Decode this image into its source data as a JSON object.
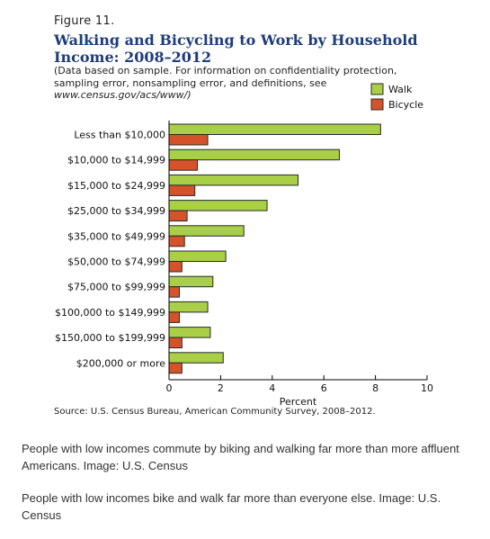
{
  "figure": {
    "label": "Figure 11.",
    "title": "Walking and Bicycling to Work by Household Income: 2008–2012",
    "note_text": "(Data based on sample. For information on confidentiality protection, sampling error, nonsampling error, and definitions, see",
    "note_url": "www.census.gov/acs/www/)",
    "source": "Source: U.S. Census Bureau, American Community Survey, 2008–2012."
  },
  "colors": {
    "walk": "#a8cf45",
    "bicycle": "#d4532b",
    "bar_stroke": "#2a2a2a"
  },
  "chart_data": {
    "type": "bar",
    "orientation": "horizontal",
    "categories": [
      "Less than $10,000",
      "$10,000 to $14,999",
      "$15,000 to $24,999",
      "$25,000 to $34,999",
      "$35,000 to $49,999",
      "$50,000 to $74,999",
      "$75,000 to $99,999",
      "$100,000 to $149,999",
      "$150,000 to $199,999",
      "$200,000 or more"
    ],
    "series": [
      {
        "name": "Walk",
        "values": [
          8.2,
          6.6,
          5.0,
          3.8,
          2.9,
          2.2,
          1.7,
          1.5,
          1.6,
          2.1
        ]
      },
      {
        "name": "Bicycle",
        "values": [
          1.5,
          1.1,
          1.0,
          0.7,
          0.6,
          0.5,
          0.4,
          0.4,
          0.5,
          0.5
        ]
      }
    ],
    "xlabel": "Percent",
    "xlim": [
      0,
      10
    ],
    "xticks": [
      "0",
      "2",
      "4",
      "6",
      "8",
      "10"
    ],
    "legend_position": "top-right",
    "grid": false
  },
  "captions": [
    "People with low incomes commute by biking and walking far more than more affluent Americans. Image: U.S. Census",
    "People with low incomes bike and walk far more than everyone else. Image: U.S. Census"
  ]
}
